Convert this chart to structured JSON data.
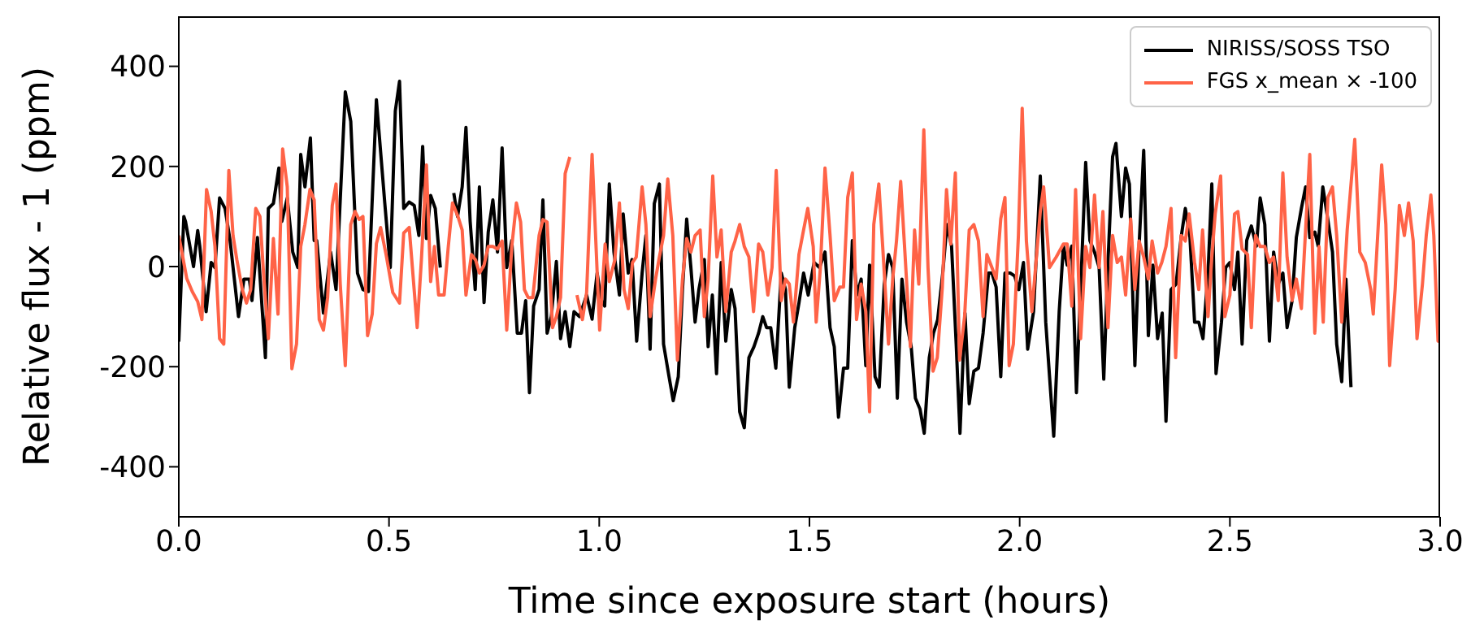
{
  "chart_data": {
    "type": "line",
    "xlabel": "Time since exposure start (hours)",
    "ylabel": "Relative flux - 1 (ppm)",
    "xlim": [
      0,
      3
    ],
    "ylim": [
      -500,
      500
    ],
    "xticks": [
      {
        "value": 0,
        "label": "0.0"
      },
      0.5,
      {
        "value": 1,
        "label": "1.0"
      },
      1.5,
      {
        "value": 2,
        "label": "2.0"
      },
      2.5,
      {
        "value": 3,
        "label": "3.0"
      }
    ],
    "yticks": [
      -400,
      -200,
      0,
      200,
      400
    ],
    "legend": "top right",
    "marker": "none",
    "series": [
      {
        "name": "NIRISS/SOSS TSO",
        "color": "#000000",
        "x": [
          0,
          0.012,
          0.016,
          0.035,
          0.045,
          0.05,
          0.065,
          0.077,
          0.086,
          0.097,
          0.11,
          0.122,
          0.142,
          0.155,
          0.168,
          0.174,
          0.187,
          0.206,
          0.213,
          0.225,
          0.238,
          0.245,
          0.258,
          0.271,
          0.283,
          0.29,
          0.3,
          0.313,
          0.322,
          0.328,
          0.344,
          0.361,
          0.374,
          0.396,
          0.409,
          0.425,
          0.438,
          0.451,
          0.47,
          0.49,
          0.503,
          0.515,
          0.525,
          0.535,
          0.548,
          0.56,
          0.571,
          0.58,
          0.589,
          0.599,
          0.61,
          0.622,
          0.631,
          0.648,
          0.654,
          0.663,
          0.674,
          0.683,
          0.693,
          0.705,
          0.715,
          0.726,
          0.736,
          0.747,
          0.758,
          0.769,
          0.78,
          0.792,
          0.805,
          0.815,
          0.825,
          0.834,
          0.844,
          0.857,
          0.866,
          0.876,
          0.886,
          0.898,
          0.908,
          0.919,
          0.93,
          0.94,
          0.953,
          0.97,
          0.983,
          0.995,
          1.005,
          1.013,
          1.024,
          1.035,
          1.048,
          1.057,
          1.069,
          1.078,
          1.089,
          1.102,
          1.111,
          1.121,
          1.131,
          1.143,
          1.153,
          1.166,
          1.176,
          1.188,
          1.198,
          1.208,
          1.218,
          1.228,
          1.237,
          1.25,
          1.259,
          1.269,
          1.279,
          1.29,
          1.301,
          1.314,
          1.323,
          1.334,
          1.345,
          1.356,
          1.368,
          1.379,
          1.389,
          1.398,
          1.408,
          1.42,
          1.433,
          1.443,
          1.452,
          1.465,
          1.475,
          1.486,
          1.497,
          1.511,
          1.524,
          1.537,
          1.549,
          1.559,
          1.569,
          1.581,
          1.591,
          1.602,
          1.613,
          1.623,
          1.634,
          1.643,
          1.656,
          1.666,
          1.678,
          1.688,
          1.698,
          1.709,
          1.72,
          1.731,
          1.742,
          1.752,
          1.763,
          1.773,
          1.785,
          1.795,
          1.805,
          1.817,
          1.827,
          1.838,
          1.849,
          1.858,
          1.87,
          1.88,
          1.891,
          1.902,
          1.913,
          1.926,
          1.934,
          1.944,
          1.955,
          1.965,
          1.978,
          1.988,
          1.998,
          2.009,
          2.019,
          2.033,
          2.049,
          2.062,
          2.081,
          2.094,
          2.104,
          2.113,
          2.124,
          2.135,
          2.145,
          2.157,
          2.167,
          2.178,
          2.189,
          2.2,
          2.21,
          2.221,
          2.229,
          2.242,
          2.252,
          2.261,
          2.274,
          2.284,
          2.295,
          2.306,
          2.317,
          2.328,
          2.339,
          2.348,
          2.36,
          2.372,
          2.384,
          2.394,
          2.405,
          2.416,
          2.426,
          2.436,
          2.448,
          2.457,
          2.467,
          2.48,
          2.49,
          2.5,
          2.511,
          2.519,
          2.529,
          2.54,
          2.551,
          2.563,
          2.572,
          2.583,
          2.594,
          2.604,
          2.615,
          2.626,
          2.636,
          2.648,
          2.658,
          2.67,
          2.68,
          2.69,
          2.702,
          2.71,
          2.721,
          2.731,
          2.744,
          2.754,
          2.766,
          2.776,
          2.788
        ],
        "values": [
          -150,
          100,
          90,
          0,
          72,
          40,
          -90,
          8,
          -2,
          137,
          116,
          52,
          -100,
          -25,
          -25,
          -68,
          58,
          -182,
          116,
          126,
          197,
          90,
          137,
          29,
          -2,
          224,
          159,
          257,
          52,
          52,
          -93,
          29,
          -46,
          349,
          290,
          -13,
          -46,
          -50,
          333,
          126,
          -2,
          311,
          370,
          116,
          129,
          122,
          62,
          240,
          56,
          142,
          116,
          -2,
          null,
          null,
          147,
          100,
          159,
          278,
          90,
          -46,
          159,
          -72,
          69,
          133,
          29,
          237,
          -2,
          52,
          -133,
          -133,
          -68,
          -252,
          -79,
          -46,
          133,
          -133,
          -100,
          10,
          -144,
          -90,
          -160,
          -90,
          -100,
          -57,
          -105,
          -13,
          -68,
          -79,
          165,
          29,
          -57,
          105,
          -13,
          14,
          -149,
          -13,
          62,
          -165,
          126,
          165,
          -155,
          -220,
          -268,
          -220,
          -46,
          95,
          -2,
          -111,
          -46,
          14,
          -160,
          -57,
          -214,
          8,
          -149,
          -46,
          -84,
          -290,
          -322,
          -182,
          -160,
          -133,
          -100,
          -122,
          -122,
          -203,
          -13,
          -46,
          -241,
          -122,
          -73,
          -13,
          -57,
          8,
          -2,
          29,
          -122,
          -160,
          -301,
          -203,
          -203,
          52,
          -57,
          -25,
          -198,
          3,
          -220,
          -241,
          -35,
          24,
          -2,
          -263,
          -25,
          -111,
          -160,
          -263,
          -285,
          -333,
          -182,
          -133,
          -106,
          -13,
          84,
          41,
          -155,
          -333,
          -93,
          -274,
          -209,
          -203,
          -133,
          -13,
          -13,
          -41,
          -220,
          -13,
          -13,
          -19,
          -46,
          8,
          -165,
          -90,
          181,
          -111,
          -339,
          -90,
          41,
          3,
          41,
          -252,
          -46,
          208,
          52,
          29,
          -2,
          -225,
          8,
          219,
          246,
          100,
          197,
          165,
          -198,
          41,
          232,
          -138,
          3,
          -144,
          -93,
          -309,
          -46,
          -35,
          58,
          116,
          58,
          -111,
          -111,
          -144,
          -13,
          165,
          -214,
          -111,
          -2,
          8,
          -46,
          29,
          -155,
          52,
          81,
          41,
          137,
          84,
          -149,
          29,
          -35,
          -13,
          -122,
          -68,
          58,
          116,
          159,
          58,
          69,
          41,
          159,
          105,
          29,
          -155,
          -230,
          -25,
          -241
        ]
      },
      {
        "name": "FGS x_mean × -100",
        "color": "#ff6347",
        "x": [
          0,
          0.019,
          0.032,
          0.045,
          0.055,
          0.066,
          0.077,
          0.086,
          0.097,
          0.107,
          0.119,
          0.129,
          0.138,
          0.151,
          0.161,
          0.171,
          0.183,
          0.193,
          0.202,
          0.213,
          0.225,
          0.236,
          0.247,
          0.258,
          0.269,
          0.28,
          0.29,
          0.3,
          0.312,
          0.322,
          0.334,
          0.344,
          0.354,
          0.365,
          0.374,
          0.384,
          0.396,
          0.409,
          0.419,
          0.429,
          0.438,
          0.449,
          0.46,
          0.47,
          0.48,
          0.493,
          0.509,
          0.525,
          0.535,
          0.548,
          0.567,
          0.577,
          0.589,
          0.599,
          0.608,
          0.618,
          0.631,
          0.641,
          0.651,
          0.664,
          0.674,
          0.683,
          0.696,
          0.706,
          0.715,
          0.726,
          0.736,
          0.747,
          0.758,
          0.769,
          0.78,
          0.792,
          0.803,
          0.813,
          0.822,
          0.831,
          0.842,
          0.857,
          0.866,
          0.876,
          0.889,
          0.898,
          0.908,
          0.919,
          0.93,
          0.94,
          0.947,
          0.96,
          0.97,
          0.983,
          1.001,
          1.014,
          1.024,
          1.037,
          1.048,
          1.059,
          1.069,
          1.079,
          1.088,
          1.102,
          1.111,
          1.121,
          1.134,
          1.143,
          1.153,
          1.163,
          1.175,
          1.186,
          1.198,
          1.208,
          1.218,
          1.228,
          1.24,
          1.25,
          1.259,
          1.27,
          1.28,
          1.29,
          1.301,
          1.314,
          1.323,
          1.334,
          1.345,
          1.356,
          1.367,
          1.379,
          1.389,
          1.401,
          1.411,
          1.421,
          1.433,
          1.443,
          1.452,
          1.462,
          1.475,
          1.486,
          1.496,
          1.509,
          1.516,
          1.526,
          1.537,
          1.549,
          1.559,
          1.572,
          1.581,
          1.591,
          1.602,
          1.612,
          1.623,
          1.634,
          1.643,
          1.653,
          1.665,
          1.675,
          1.688,
          1.698,
          1.707,
          1.717,
          1.727,
          1.74,
          1.75,
          1.76,
          1.772,
          1.782,
          1.794,
          1.804,
          1.816,
          1.826,
          1.836,
          1.847,
          1.857,
          1.869,
          1.88,
          1.891,
          1.902,
          1.913,
          1.922,
          1.934,
          1.944,
          1.955,
          1.965,
          1.975,
          1.985,
          1.997,
          2.006,
          2.016,
          2.029,
          2.049,
          2.057,
          2.071,
          2.087,
          2.104,
          2.113,
          2.124,
          2.133,
          2.145,
          2.157,
          2.167,
          2.178,
          2.189,
          2.198,
          2.21,
          2.221,
          2.232,
          2.242,
          2.252,
          2.264,
          2.274,
          2.284,
          2.295,
          2.306,
          2.315,
          2.328,
          2.338,
          2.348,
          2.36,
          2.371,
          2.384,
          2.394,
          2.403,
          2.416,
          2.426,
          2.435,
          2.448,
          2.457,
          2.465,
          2.478,
          2.488,
          2.5,
          2.511,
          2.519,
          2.529,
          2.542,
          2.551,
          2.561,
          2.572,
          2.583,
          2.594,
          2.604,
          2.615,
          2.626,
          2.636,
          2.648,
          2.658,
          2.67,
          2.68,
          2.69,
          2.702,
          2.712,
          2.722,
          2.733,
          2.744,
          2.754,
          2.766,
          2.779,
          2.797,
          2.809,
          2.822,
          2.835,
          2.841,
          2.861,
          2.871,
          2.88,
          2.893,
          2.903,
          2.915,
          2.925,
          2.936,
          2.945,
          2.958,
          2.967,
          2.978,
          2.985,
          2.995,
          3
        ],
        "values": [
          62,
          -24,
          -50,
          -70,
          -106,
          154,
          110,
          40,
          -144,
          -155,
          192,
          62,
          14,
          -46,
          -73,
          -46,
          116,
          100,
          -19,
          -144,
          56,
          -95,
          235,
          159,
          -204,
          -155,
          40,
          84,
          154,
          133,
          -106,
          -127,
          -62,
          122,
          165,
          -35,
          -198,
          84,
          110,
          94,
          100,
          -138,
          -95,
          46,
          78,
          24,
          -52,
          -73,
          67,
          78,
          -122,
          13,
          203,
          -30,
          40,
          -57,
          -57,
          40,
          127,
          100,
          73,
          -57,
          24,
          13,
          -13,
          3,
          40,
          40,
          35,
          51,
          -127,
          40,
          127,
          89,
          -46,
          -62,
          -62,
          62,
          94,
          89,
          -122,
          -100,
          -62,
          186,
          219,
          null,
          -57,
          -106,
          -52,
          224,
          -127,
          45,
          -30,
          13,
          127,
          -46,
          -84,
          8,
          19,
          159,
          84,
          -100,
          -25,
          19,
          62,
          175,
          62,
          -187,
          -25,
          56,
          29,
          62,
          73,
          -100,
          -25,
          181,
          19,
          73,
          -90,
          29,
          51,
          84,
          40,
          19,
          -90,
          45,
          29,
          -57,
          -2,
          192,
          -68,
          -25,
          -35,
          -111,
          24,
          73,
          116,
          40,
          -111,
          -2,
          197,
          62,
          -68,
          -41,
          -41,
          138,
          187,
          -106,
          -35,
          -90,
          -290,
          84,
          165,
          29,
          -155,
          -25,
          51,
          170,
          29,
          -160,
          73,
          -35,
          273,
          -2,
          -209,
          -182,
          -41,
          154,
          45,
          187,
          -187,
          -100,
          73,
          84,
          51,
          -100,
          24,
          -2,
          -25,
          95,
          138,
          -198,
          -155,
          62,
          316,
          51,
          -90,
          110,
          159,
          -2,
          19,
          45,
          45,
          -79,
          154,
          -144,
          40,
          -2,
          143,
          -2,
          110,
          -122,
          62,
          8,
          19,
          -57,
          95,
          -46,
          51,
          19,
          -25,
          51,
          -13,
          8,
          40,
          116,
          -182,
          62,
          51,
          105,
          8,
          -46,
          73,
          -100,
          19,
          105,
          181,
          -100,
          -57,
          105,
          110,
          35,
          24,
          -122,
          62,
          40,
          40,
          8,
          19,
          -68,
          187,
          19,
          -68,
          -25,
          -84,
          73,
          224,
          -133,
          40,
          -111,
          138,
          159,
          62,
          -111,
          73,
          254,
          29,
          8,
          -46,
          -95,
          203,
          84,
          -198,
          -46,
          122,
          62,
          127,
          51,
          -144,
          -35,
          62,
          143,
          62,
          -149,
          -150
        ]
      }
    ]
  }
}
